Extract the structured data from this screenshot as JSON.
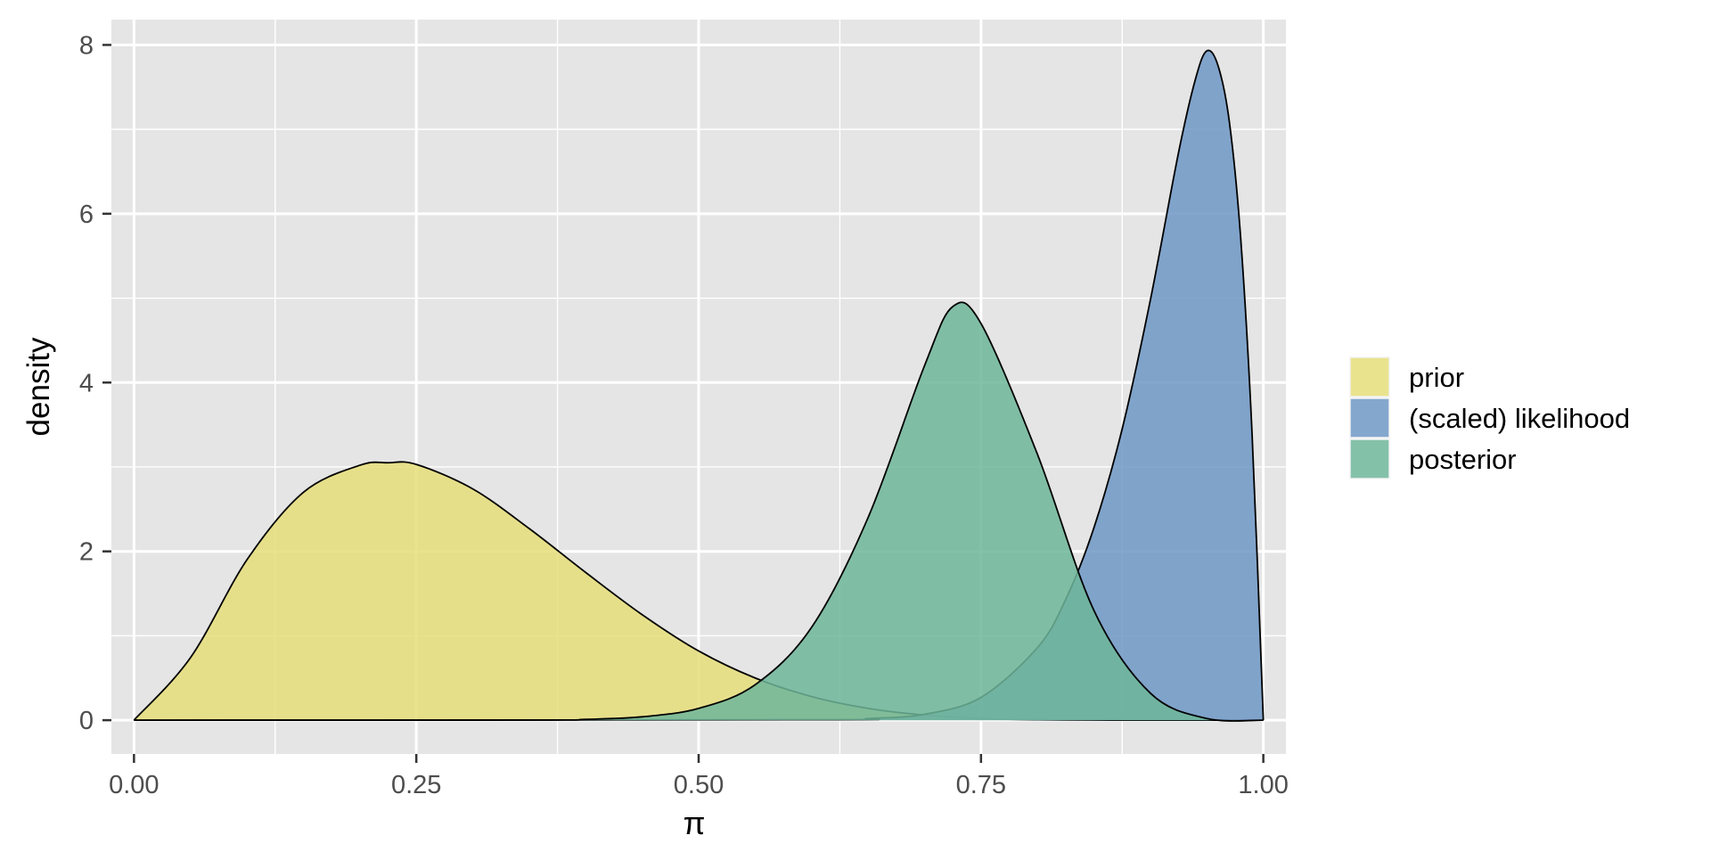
{
  "chart_data": {
    "type": "area",
    "title": "",
    "xlabel": "π",
    "ylabel": "density",
    "xlim": [
      -0.02,
      1.02
    ],
    "ylim": [
      -0.4,
      8.3
    ],
    "x_ticks": [
      {
        "value": 0.0,
        "label": "0.00"
      },
      {
        "value": 0.25,
        "label": "0.25"
      },
      {
        "value": 0.5,
        "label": "0.50"
      },
      {
        "value": 0.75,
        "label": "0.75"
      },
      {
        "value": 1.0,
        "label": "1.00"
      }
    ],
    "x_minor_ticks": [
      0.125,
      0.375,
      0.625,
      0.875
    ],
    "y_ticks": [
      {
        "value": 0,
        "label": "0"
      },
      {
        "value": 2,
        "label": "2"
      },
      {
        "value": 4,
        "label": "4"
      },
      {
        "value": 6,
        "label": "6"
      },
      {
        "value": 8,
        "label": "8"
      }
    ],
    "y_minor_ticks": [
      1,
      3,
      5,
      7
    ],
    "grid": true,
    "legend_position": "right",
    "background_color": "#e5e5e5",
    "grid_color": "#ffffff",
    "series": [
      {
        "name": "prior",
        "color": "#e6de7a",
        "x": [
          0.0,
          0.05,
          0.1,
          0.15,
          0.2,
          0.225,
          0.25,
          0.3,
          0.35,
          0.4,
          0.45,
          0.5,
          0.55,
          0.6,
          0.65,
          0.7,
          0.75,
          0.8,
          0.85,
          0.9,
          1.0
        ],
        "y": [
          0.0,
          0.74,
          1.9,
          2.7,
          3.02,
          3.05,
          3.03,
          2.74,
          2.27,
          1.75,
          1.25,
          0.82,
          0.5,
          0.28,
          0.14,
          0.06,
          0.02,
          0.005,
          0.001,
          0.0,
          0.0
        ]
      },
      {
        "name": "(scaled) likelihood",
        "color": "#6f98c6",
        "x": [
          0.0,
          0.6,
          0.65,
          0.7,
          0.75,
          0.8,
          0.825,
          0.85,
          0.875,
          0.9,
          0.925,
          0.94,
          0.95,
          0.96,
          0.97,
          0.98,
          0.99,
          1.0
        ],
        "y": [
          0.0,
          0.005,
          0.02,
          0.07,
          0.27,
          0.86,
          1.43,
          2.28,
          3.45,
          4.98,
          6.73,
          7.6,
          7.93,
          7.75,
          7.08,
          5.7,
          3.4,
          0.0
        ]
      },
      {
        "name": "posterior",
        "color": "#6fb69a",
        "x": [
          0.0,
          0.35,
          0.4,
          0.45,
          0.5,
          0.55,
          0.6,
          0.65,
          0.7,
          0.725,
          0.75,
          0.8,
          0.85,
          0.9,
          0.95,
          1.0
        ],
        "y": [
          0.0,
          0.001,
          0.01,
          0.04,
          0.14,
          0.42,
          1.1,
          2.4,
          4.2,
          4.9,
          4.7,
          3.15,
          1.3,
          0.32,
          0.02,
          0.0
        ]
      }
    ]
  }
}
